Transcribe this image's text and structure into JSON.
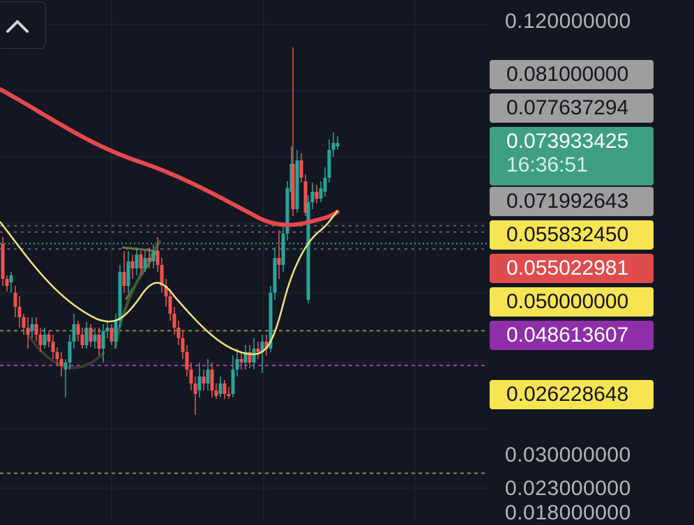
{
  "scale": {
    "min": 0.0165,
    "max": 0.1245
  },
  "axis_labels": [
    {
      "text": "0.120000000",
      "value": 0.12
    },
    {
      "text": "0.030000000",
      "value": 0.03
    },
    {
      "text": "0.023000000",
      "value": 0.023
    },
    {
      "text": "0.018000000",
      "value": 0.018
    }
  ],
  "price_tags": [
    {
      "name": "price-tag-0810",
      "text": "0.081000000",
      "value": 0.081,
      "bg": "#9e9e9e",
      "fg": "#131722"
    },
    {
      "name": "price-tag-0776",
      "text": "0.077637294",
      "value": 0.077637294,
      "bg": "#9e9e9e",
      "fg": "#131722"
    },
    {
      "name": "price-tag-current",
      "text": "0.073933425",
      "value": 0.073933425,
      "bg": "#3f9f85",
      "fg": "#ffffff",
      "countdown": "16:36:51"
    },
    {
      "name": "price-tag-0719",
      "text": "0.071992643",
      "value": 0.071992643,
      "bg": "#9e9e9e",
      "fg": "#131722"
    },
    {
      "name": "price-tag-0558",
      "text": "0.055832450",
      "value": 0.05583245,
      "bg": "#f7e453",
      "fg": "#131722"
    },
    {
      "name": "price-tag-0550",
      "text": "0.055022981",
      "value": 0.055022981,
      "bg": "#e04c4c",
      "fg": "#ffffff"
    },
    {
      "name": "price-tag-0500",
      "text": "0.050000000",
      "value": 0.05,
      "bg": "#f7e453",
      "fg": "#131722"
    },
    {
      "name": "price-tag-0486",
      "text": "0.048613607",
      "value": 0.048613607,
      "bg": "#8e2fa8",
      "fg": "#ffffff"
    },
    {
      "name": "price-tag-0262",
      "text": "0.026228648",
      "value": 0.026228648,
      "bg": "#f7e453",
      "fg": "#131722"
    }
  ],
  "colors": {
    "up": "#26a69a",
    "down": "#ef5350",
    "ma_slow": "#e5484d",
    "ma_fast": "#f3e179",
    "grid": "#1f2430"
  },
  "icons": {
    "collapse": "chevron-up-icon"
  }
}
